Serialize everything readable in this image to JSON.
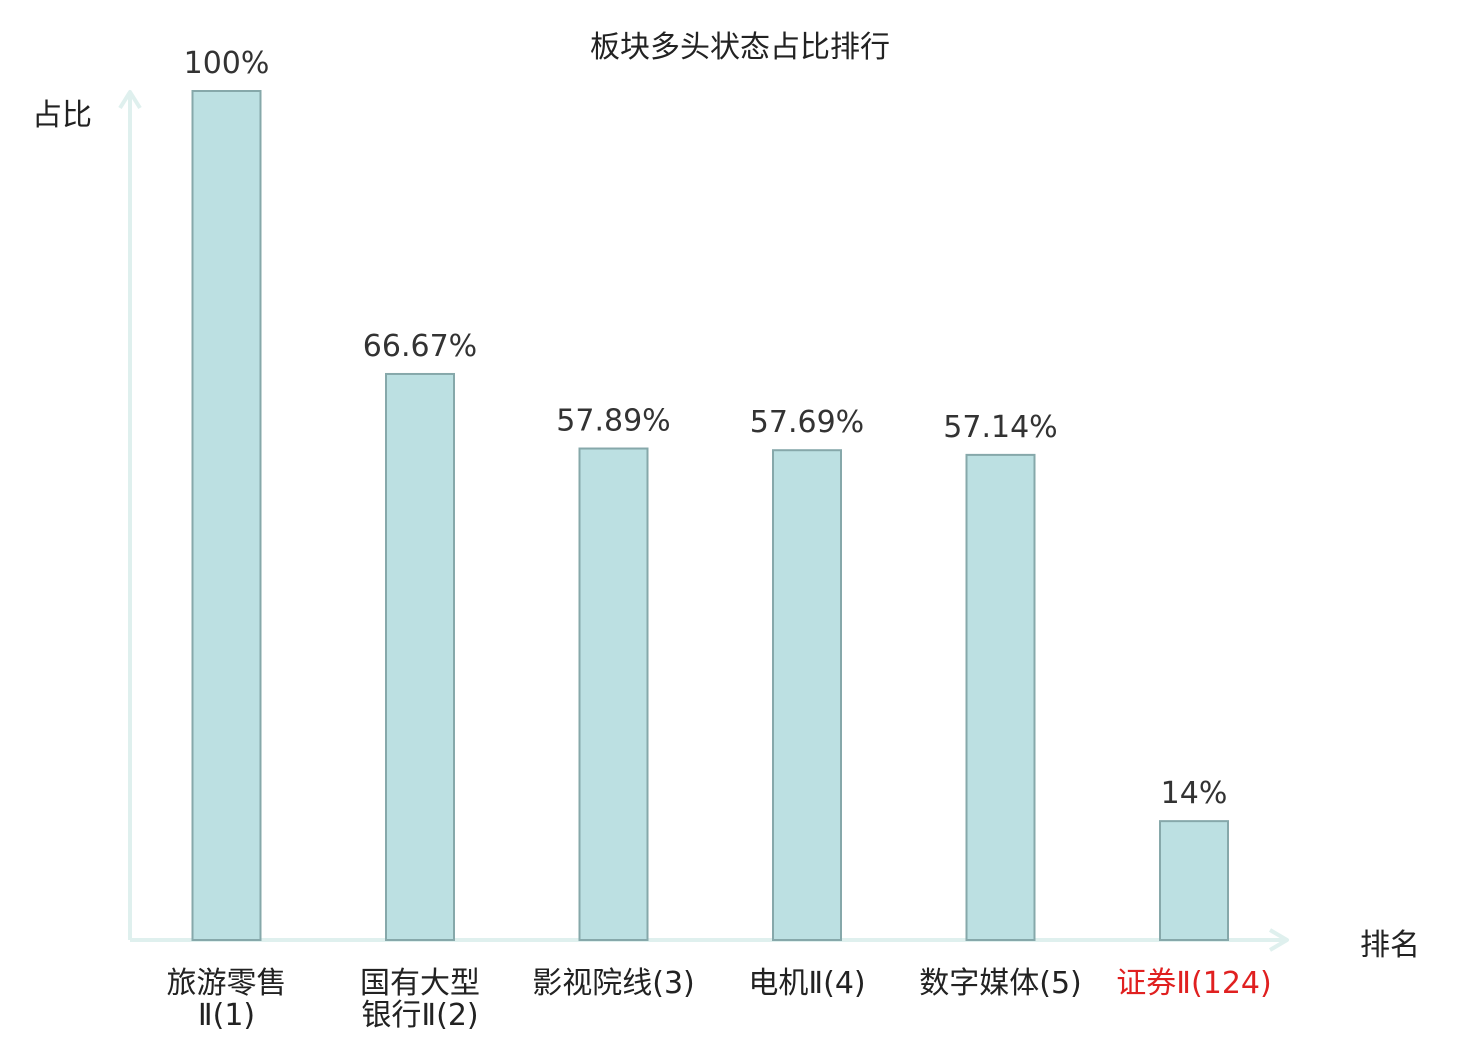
{
  "chart_data": {
    "type": "bar",
    "title": "板块多头状态占比排行",
    "ylabel": "占比",
    "xlabel": "排名",
    "ylim": [
      0,
      100
    ],
    "categories": [
      [
        "旅游零售",
        "Ⅱ(1)"
      ],
      [
        "国有大型",
        "银行Ⅱ(2)"
      ],
      [
        "影视院线(3)"
      ],
      [
        "电机Ⅱ(4)"
      ],
      [
        "数字媒体(5)"
      ],
      [
        "证券Ⅱ(124)"
      ]
    ],
    "values": [
      100,
      66.67,
      57.89,
      57.69,
      57.14,
      14
    ],
    "data_labels": [
      "100%",
      "66.67%",
      "57.89%",
      "57.69%",
      "57.14%",
      "14%"
    ],
    "highlight_index": 5,
    "colors": {
      "bar_fill": "#bce0e2",
      "bar_stroke": "#86a8aa",
      "axis": "#dff0ee",
      "label_text": "#333333",
      "category_text": "#222222",
      "highlight_text": "#e02020"
    }
  }
}
